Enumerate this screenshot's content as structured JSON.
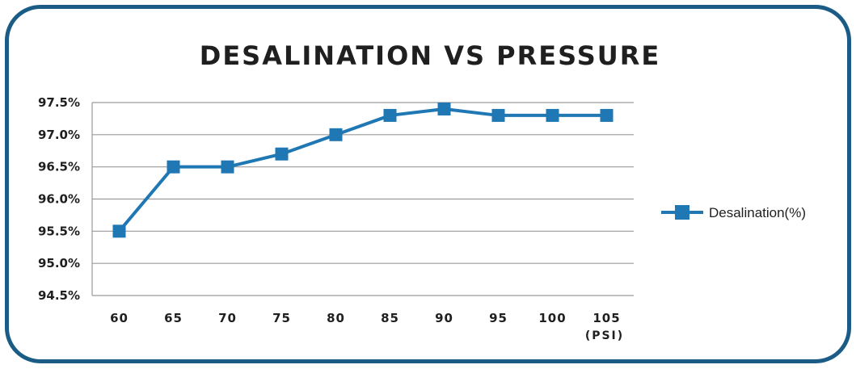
{
  "colors": {
    "frame": "#1a5c86",
    "series": "#1f77b4",
    "grid": "#9a9a9a",
    "text": "#1f1f1f"
  },
  "chart_data": {
    "type": "line",
    "title": "DESALINATION VS PRESSURE",
    "x": [
      60,
      65,
      70,
      75,
      80,
      85,
      90,
      95,
      100,
      105
    ],
    "x_tick_labels": [
      "60",
      "65",
      "70",
      "75",
      "80",
      "85",
      "90",
      "95",
      "100",
      "105"
    ],
    "x_unit": "(PSI)",
    "y_tick_labels": [
      "97.5%",
      "97.0%",
      "96.5%",
      "96.0%",
      "95.5%",
      "95.0%",
      "94.5%"
    ],
    "ylim": [
      94.5,
      97.5
    ],
    "grid": true,
    "legend_position": "right",
    "series": [
      {
        "name": "Desalination(%)",
        "marker": "square",
        "values": [
          95.5,
          96.5,
          96.5,
          96.7,
          97.0,
          97.3,
          97.4,
          97.3,
          97.3,
          97.3
        ]
      }
    ]
  }
}
